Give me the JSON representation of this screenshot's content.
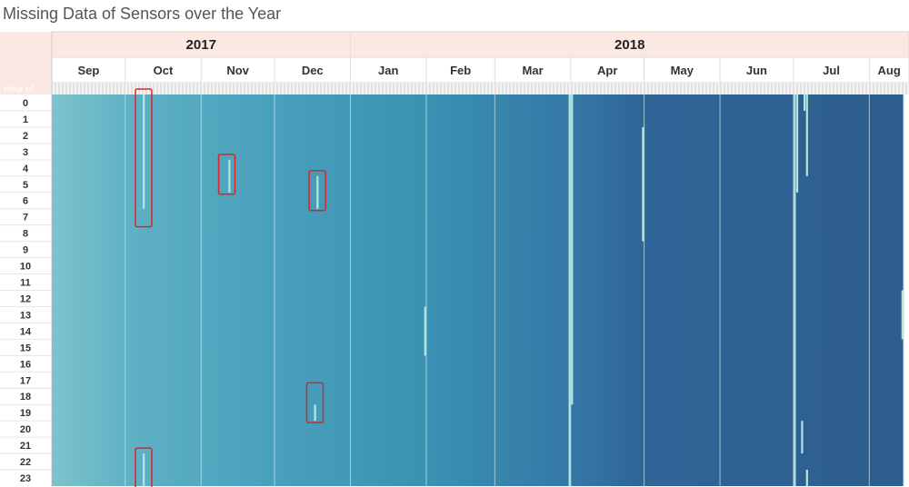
{
  "title": "Missing Data of Sensors over the Year",
  "chart_data": {
    "type": "heatmap",
    "title": "Missing Data of Sensors over the Year",
    "row_axis_label": "Hour of ..",
    "years": [
      {
        "label": "2017",
        "months": [
          "Sep",
          "Oct",
          "Nov",
          "Dec"
        ]
      },
      {
        "label": "2018",
        "months": [
          "Jan",
          "Feb",
          "Mar",
          "Apr",
          "May",
          "Jun",
          "Jul",
          "Aug"
        ]
      }
    ],
    "months": [
      {
        "label": "Sep",
        "days": 30
      },
      {
        "label": "Oct",
        "days": 31
      },
      {
        "label": "Nov",
        "days": 30
      },
      {
        "label": "Dec",
        "days": 31
      },
      {
        "label": "Jan",
        "days": 31
      },
      {
        "label": "Feb",
        "days": 28
      },
      {
        "label": "Mar",
        "days": 31
      },
      {
        "label": "Apr",
        "days": 30
      },
      {
        "label": "May",
        "days": 31
      },
      {
        "label": "Jun",
        "days": 30
      },
      {
        "label": "Jul",
        "days": 31
      },
      {
        "label": "Aug",
        "days": 14
      }
    ],
    "hours": [
      "0",
      "1",
      "2",
      "3",
      "4",
      "5",
      "6",
      "7",
      "8",
      "9",
      "10",
      "11",
      "12",
      "13",
      "14",
      "15",
      "16",
      "17",
      "18",
      "19",
      "20",
      "21",
      "22",
      "23"
    ],
    "color_scale": {
      "low": "#7ec3cc",
      "mid": "#3a92b3",
      "high": "#2e5e8e",
      "missing": "#b4e6df"
    },
    "gradient_stops": [
      {
        "day": 0,
        "color": "#7ec3cc"
      },
      {
        "day": 31,
        "color": "#5fb1c4"
      },
      {
        "day": 91,
        "color": "#49a0bc"
      },
      {
        "day": 152,
        "color": "#3a92b3"
      },
      {
        "day": 211,
        "color": "#3578a6"
      },
      {
        "day": 242,
        "color": "#2f6597"
      },
      {
        "day": 333,
        "color": "#2e5e8e"
      },
      {
        "day": 348,
        "color": "#2e5e8e"
      }
    ],
    "missing_segments": [
      {
        "date": "2017-10-08",
        "hour_from": 0,
        "hour_to": 6
      },
      {
        "date": "2017-11-12",
        "hour_from": 4,
        "hour_to": 5
      },
      {
        "date": "2017-12-18",
        "hour_from": 5,
        "hour_to": 6
      },
      {
        "date": "2017-12-17",
        "hour_from": 19,
        "hour_to": 19
      },
      {
        "date": "2017-10-08",
        "hour_from": 22,
        "hour_to": 23
      },
      {
        "date": "2018-01-31",
        "hour_from": 13,
        "hour_to": 15
      },
      {
        "date": "2018-03-31",
        "hour_from": 0,
        "hour_to": 23
      },
      {
        "date": "2018-04-01",
        "hour_from": 0,
        "hour_to": 18
      },
      {
        "date": "2018-04-30",
        "hour_from": 2,
        "hour_to": 8
      },
      {
        "date": "2018-07-01",
        "hour_from": 0,
        "hour_to": 23
      },
      {
        "date": "2018-07-02",
        "hour_from": 0,
        "hour_to": 5
      },
      {
        "date": "2018-07-05",
        "hour_from": 0,
        "hour_to": 0
      },
      {
        "date": "2018-07-06",
        "hour_from": 0,
        "hour_to": 4
      },
      {
        "date": "2018-07-04",
        "hour_from": 20,
        "hour_to": 21
      },
      {
        "date": "2018-07-06",
        "hour_from": 23,
        "hour_to": 23
      },
      {
        "date": "2018-08-14",
        "hour_from": 12,
        "hour_to": 14
      }
    ],
    "highlights": [
      {
        "date": "2017-10-08",
        "hour_from": 0,
        "hour_to": 7
      },
      {
        "date": "2017-11-11",
        "hour_from": 4,
        "hour_to": 5
      },
      {
        "date": "2017-12-18",
        "hour_from": 5,
        "hour_to": 6
      },
      {
        "date": "2017-12-17",
        "hour_from": 18,
        "hour_to": 19
      },
      {
        "date": "2017-10-08",
        "hour_from": 22,
        "hour_to": 23
      }
    ],
    "highlight_color": "#d62728",
    "header_fill": "#fbe8e2"
  }
}
